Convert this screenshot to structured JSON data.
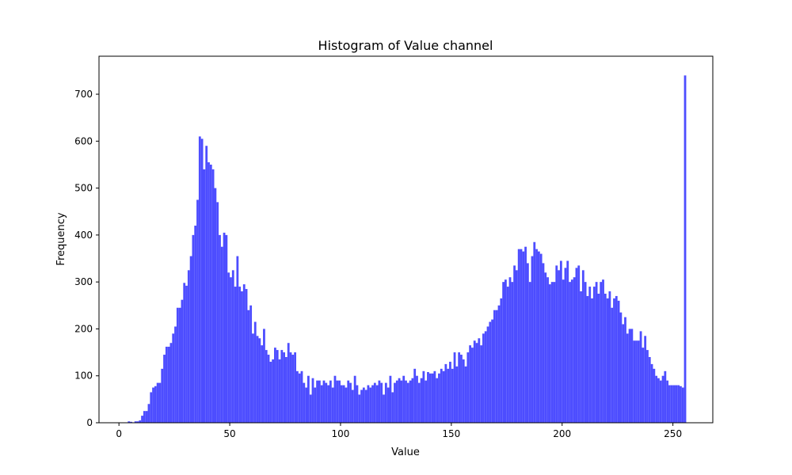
{
  "chart_data": {
    "type": "histogram",
    "title": "Histogram of Value channel",
    "x_label": "Value",
    "y_label": "Frequency",
    "color": "#4d4dff",
    "bins": [
      0,
      1,
      2,
      3,
      4,
      5,
      6,
      7,
      8,
      9,
      10,
      11,
      12,
      13,
      14,
      15,
      16,
      17,
      18,
      19,
      20,
      21,
      22,
      23,
      24,
      25,
      26,
      27,
      28,
      29,
      30,
      31,
      32,
      33,
      34,
      35,
      36,
      37,
      38,
      39,
      40,
      41,
      42,
      43,
      44,
      45,
      46,
      47,
      48,
      49,
      50,
      51,
      52,
      53,
      54,
      55,
      56,
      57,
      58,
      59,
      60,
      61,
      62,
      63,
      64,
      65,
      66,
      67,
      68,
      69,
      70,
      71,
      72,
      73,
      74,
      75,
      76,
      77,
      78,
      79,
      80,
      81,
      82,
      83,
      84,
      85,
      86,
      87,
      88,
      89,
      90,
      91,
      92,
      93,
      94,
      95,
      96,
      97,
      98,
      99,
      100,
      101,
      102,
      103,
      104,
      105,
      106,
      107,
      108,
      109,
      110,
      111,
      112,
      113,
      114,
      115,
      116,
      117,
      118,
      119,
      120,
      121,
      122,
      123,
      124,
      125,
      126,
      127,
      128,
      129,
      130,
      131,
      132,
      133,
      134,
      135,
      136,
      137,
      138,
      139,
      140,
      141,
      142,
      143,
      144,
      145,
      146,
      147,
      148,
      149,
      150,
      151,
      152,
      153,
      154,
      155,
      156,
      157,
      158,
      159,
      160,
      161,
      162,
      163,
      164,
      165,
      166,
      167,
      168,
      169,
      170,
      171,
      172,
      173,
      174,
      175,
      176,
      177,
      178,
      179,
      180,
      181,
      182,
      183,
      184,
      185,
      186,
      187,
      188,
      189,
      190,
      191,
      192,
      193,
      194,
      195,
      196,
      197,
      198,
      199,
      200,
      201,
      202,
      203,
      204,
      205,
      206,
      207,
      208,
      209,
      210,
      211,
      212,
      213,
      214,
      215,
      216,
      217,
      218,
      219,
      220,
      221,
      222,
      223,
      224,
      225,
      226,
      227,
      228,
      229,
      230,
      231,
      232,
      233,
      234,
      235,
      236,
      237,
      238,
      239,
      240,
      241,
      242,
      243,
      244,
      245,
      246,
      247,
      248,
      249,
      250,
      251,
      252,
      253,
      254,
      255,
      256
    ],
    "values": [
      0,
      0,
      0,
      0,
      3,
      2,
      0,
      3,
      3,
      5,
      15,
      25,
      25,
      40,
      65,
      75,
      78,
      85,
      85,
      115,
      145,
      162,
      162,
      170,
      190,
      205,
      245,
      245,
      262,
      298,
      292,
      325,
      355,
      400,
      420,
      475,
      610,
      605,
      540,
      590,
      555,
      550,
      540,
      500,
      470,
      400,
      375,
      405,
      400,
      320,
      310,
      325,
      290,
      355,
      290,
      280,
      295,
      285,
      240,
      250,
      190,
      215,
      185,
      180,
      165,
      200,
      155,
      145,
      130,
      135,
      160,
      155,
      135,
      155,
      150,
      140,
      170,
      150,
      145,
      150,
      110,
      105,
      110,
      85,
      75,
      100,
      60,
      95,
      75,
      90,
      90,
      80,
      90,
      85,
      80,
      90,
      75,
      100,
      90,
      90,
      80,
      80,
      75,
      90,
      85,
      70,
      100,
      80,
      60,
      70,
      75,
      70,
      80,
      75,
      80,
      85,
      80,
      90,
      85,
      60,
      85,
      75,
      100,
      65,
      85,
      90,
      95,
      90,
      100,
      90,
      85,
      90,
      95,
      115,
      100,
      85,
      95,
      110,
      90,
      108,
      105,
      105,
      110,
      95,
      105,
      115,
      110,
      125,
      115,
      130,
      115,
      150,
      120,
      150,
      145,
      135,
      120,
      150,
      165,
      160,
      175,
      170,
      180,
      165,
      190,
      195,
      205,
      215,
      220,
      240,
      240,
      250,
      265,
      300,
      305,
      290,
      310,
      300,
      335,
      325,
      370,
      370,
      365,
      375,
      340,
      300,
      355,
      385,
      370,
      365,
      360,
      340,
      320,
      310,
      295,
      300,
      300,
      335,
      325,
      345,
      305,
      330,
      345,
      300,
      305,
      310,
      330,
      335,
      280,
      325,
      300,
      270,
      290,
      265,
      290,
      300,
      275,
      300,
      305,
      275,
      265,
      280,
      245,
      265,
      270,
      260,
      235,
      210,
      225,
      190,
      200,
      200,
      175,
      175,
      175,
      195,
      160,
      185,
      155,
      140,
      125,
      115,
      100,
      95,
      90,
      100,
      110,
      90,
      80,
      80,
      80,
      80,
      80,
      78,
      75,
      740
    ],
    "xlim": [
      -9,
      268
    ],
    "ylim": [
      0,
      781
    ],
    "xticks": [
      0,
      50,
      100,
      150,
      200,
      250
    ],
    "yticks": [
      0,
      100,
      200,
      300,
      400,
      500,
      600,
      700
    ]
  }
}
